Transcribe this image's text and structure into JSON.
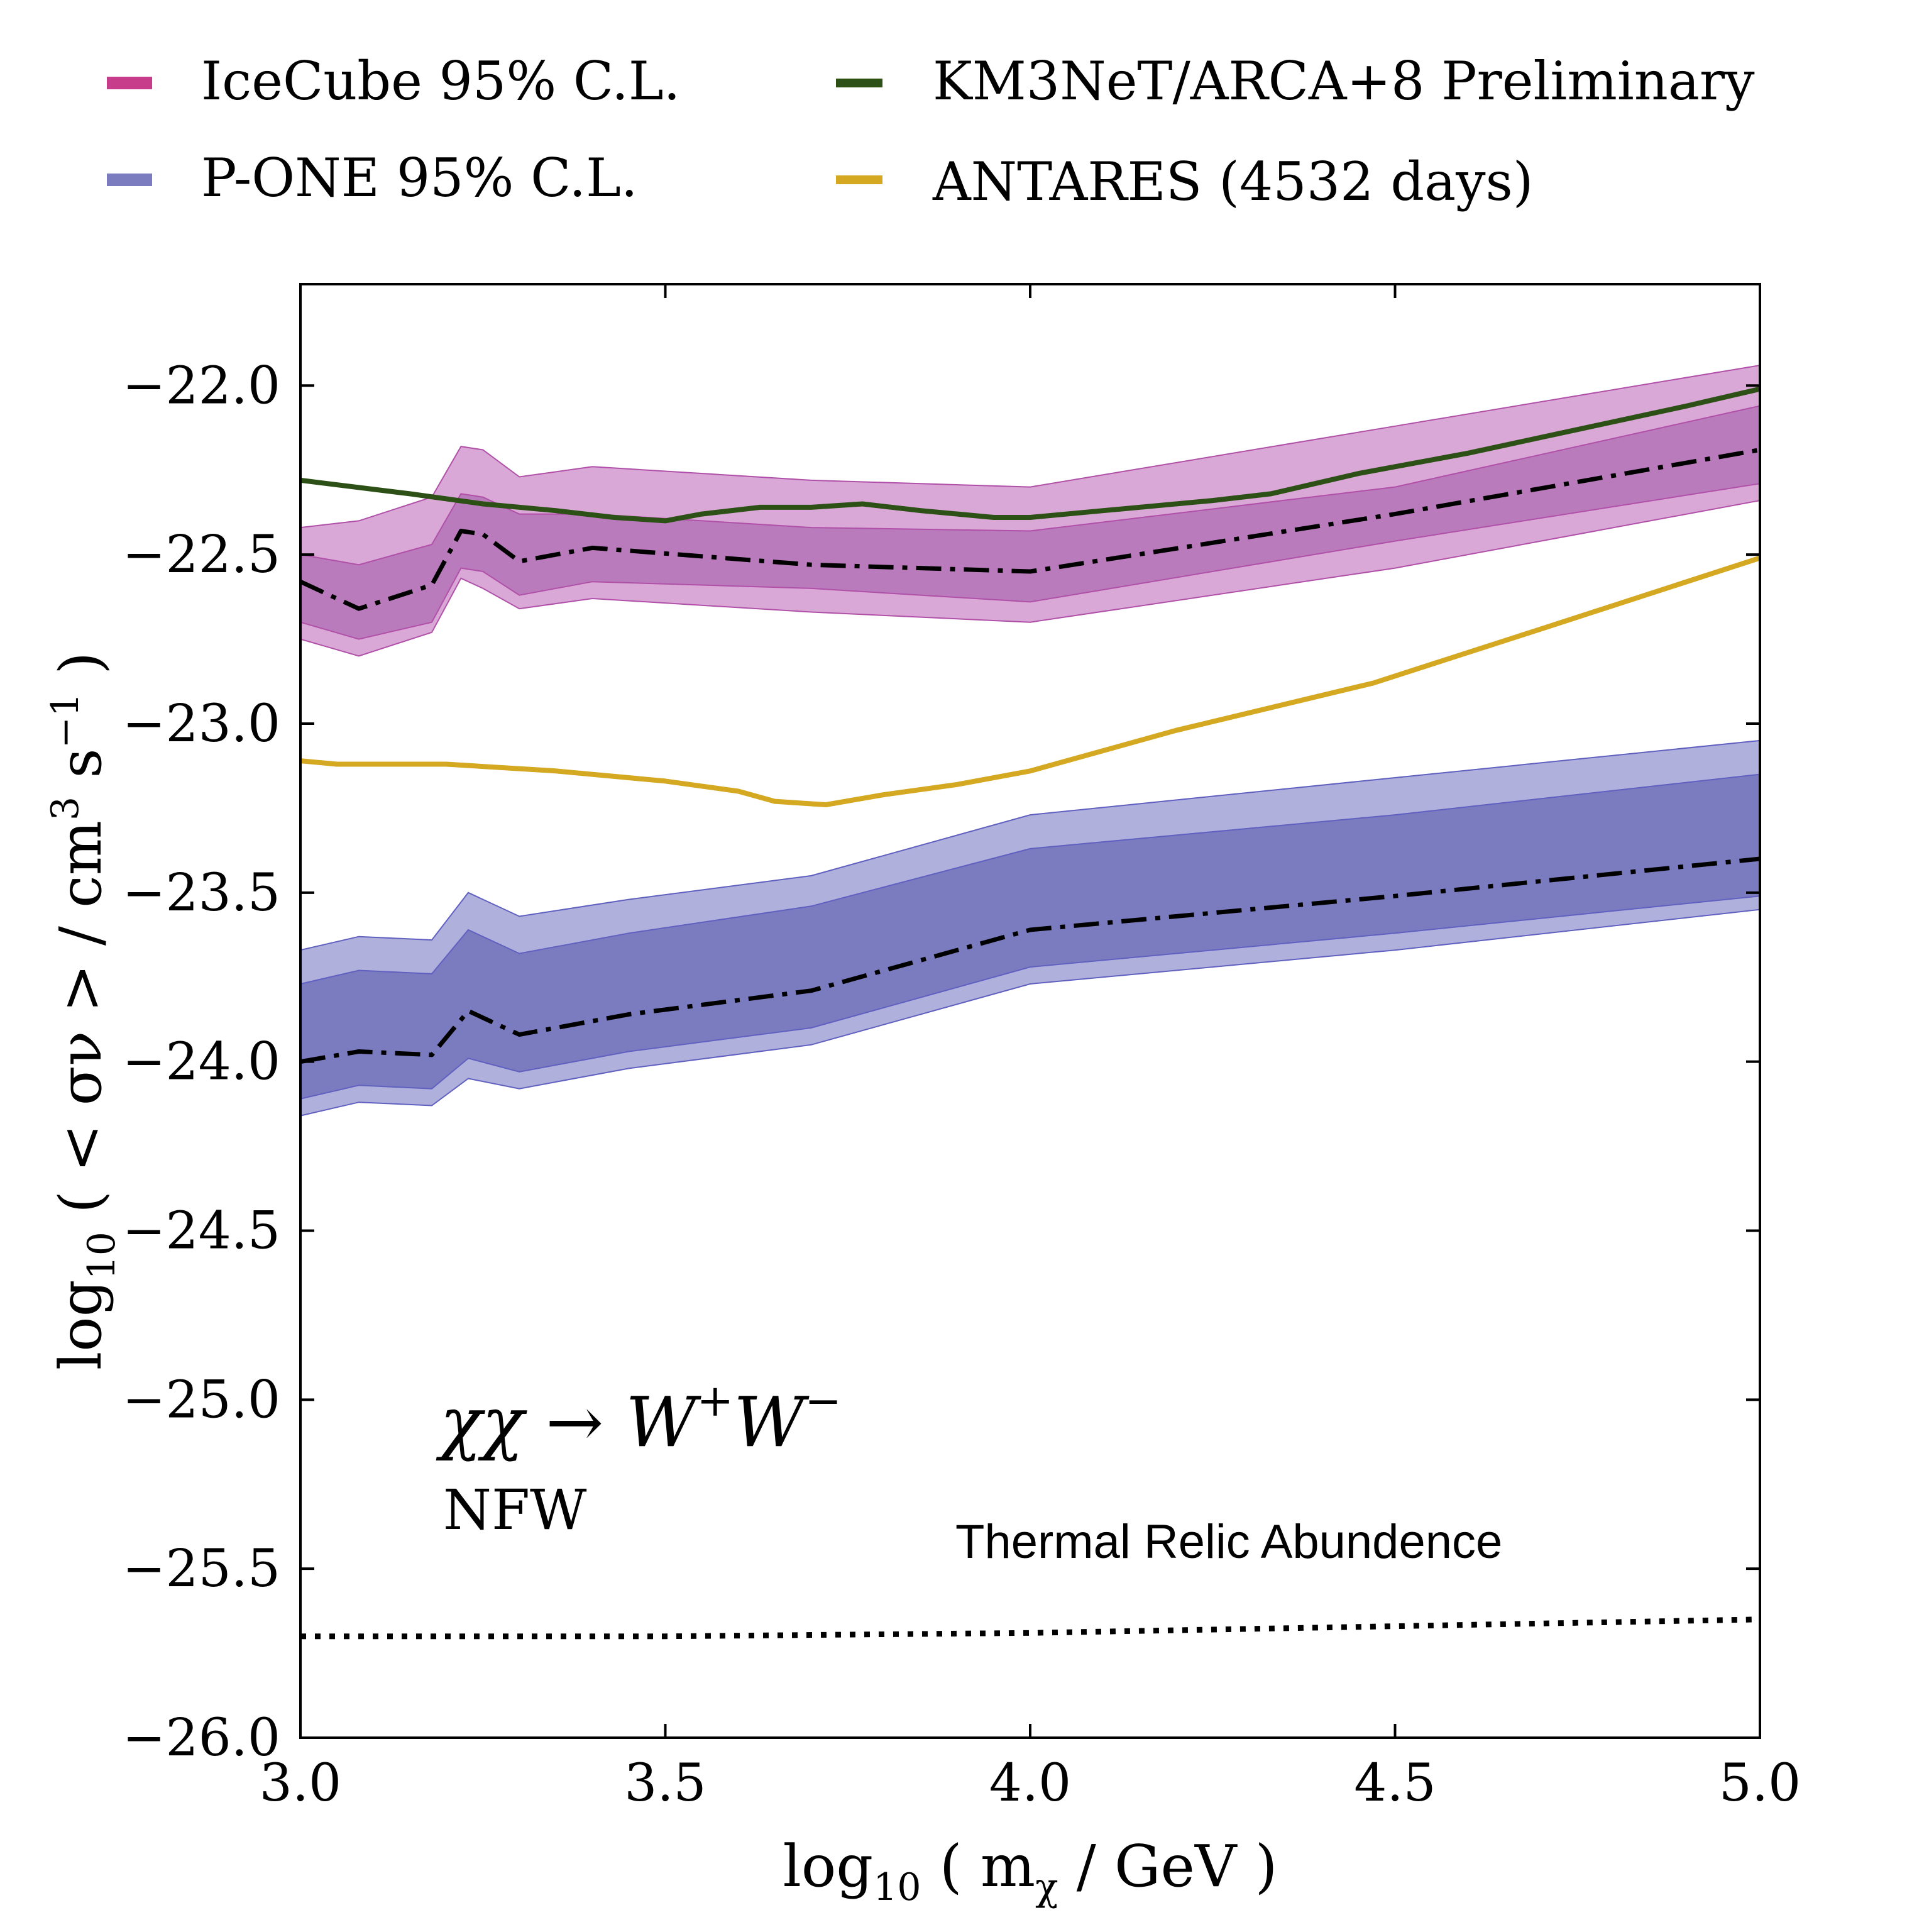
{
  "chart_data": {
    "type": "line",
    "title": "",
    "xlabel": {
      "pre": "log",
      "sub": "10",
      "post": " ( m",
      "sub2": "χ",
      "post2": " / GeV )"
    },
    "ylabel": {
      "pre": "log",
      "sub": "10",
      "post": " ( < σν > / cm",
      "sup": "3",
      "mid": " s",
      "sup2": "−1",
      "post2": " )"
    },
    "xlim": [
      3.0,
      5.0
    ],
    "ylim": [
      -26.0,
      -21.7
    ],
    "xticks": [
      3.0,
      3.5,
      4.0,
      4.5,
      5.0
    ],
    "xtick_labels": [
      "3.0",
      "3.5",
      "4.0",
      "4.5",
      "5.0"
    ],
    "yticks": [
      -26.0,
      -25.5,
      -25.0,
      -24.5,
      -24.0,
      -23.5,
      -23.0,
      -22.5,
      -22.0
    ],
    "ytick_labels": [
      "−26.0",
      "−25.5",
      "−25.0",
      "−24.5",
      "−24.0",
      "−23.5",
      "−23.0",
      "−22.5",
      "−22.0"
    ],
    "annotations": {
      "channel": {
        "chi": "χχ → W",
        "plus": "+",
        "w": "W",
        "minus": "−"
      },
      "profile": "NFW",
      "thermal_label": "Thermal Relic Abundence"
    },
    "legend": {
      "placement": "above plot",
      "entries": [
        {
          "label": "IceCube 95% C.L.",
          "color": "#c83c8c",
          "kind": "band"
        },
        {
          "label": "P-ONE 95% C.L.",
          "color": "#7b7bc0",
          "kind": "band"
        },
        {
          "label": "KM3NeT/ARCA+8 Preliminary",
          "color": "#2d5016",
          "kind": "line"
        },
        {
          "label": "ANTARES (4532 days)",
          "color": "#d4a820",
          "kind": "line"
        }
      ]
    },
    "bands": [
      {
        "name": "IceCube",
        "x": [
          3.0,
          3.08,
          3.18,
          3.22,
          3.25,
          3.3,
          3.4,
          3.7,
          4.0,
          4.5,
          5.0
        ],
        "outer_upper": [
          -22.42,
          -22.4,
          -22.33,
          -22.18,
          -22.19,
          -22.27,
          -22.24,
          -22.28,
          -22.3,
          -22.12,
          -21.94
        ],
        "inner_upper": [
          -22.5,
          -22.53,
          -22.47,
          -22.32,
          -22.33,
          -22.38,
          -22.38,
          -22.42,
          -22.43,
          -22.3,
          -22.06
        ],
        "inner_lower": [
          -22.7,
          -22.75,
          -22.7,
          -22.54,
          -22.55,
          -22.62,
          -22.58,
          -22.6,
          -22.64,
          -22.46,
          -22.29
        ],
        "outer_lower": [
          -22.75,
          -22.8,
          -22.73,
          -22.57,
          -22.6,
          -22.66,
          -22.63,
          -22.67,
          -22.7,
          -22.54,
          -22.34
        ],
        "median": [
          -22.58,
          -22.66,
          -22.59,
          -22.43,
          -22.44,
          -22.52,
          -22.48,
          -22.53,
          -22.55,
          -22.38,
          -22.19
        ],
        "outer_color": "#d9a8d6",
        "inner_color": "#b97bbb",
        "edge_color": "#b050a8"
      },
      {
        "name": "P-ONE",
        "x": [
          3.0,
          3.08,
          3.18,
          3.23,
          3.3,
          3.45,
          3.7,
          4.0,
          4.5,
          5.0
        ],
        "outer_upper": [
          -23.67,
          -23.63,
          -23.64,
          -23.5,
          -23.57,
          -23.52,
          -23.45,
          -23.27,
          -23.16,
          -23.05
        ],
        "inner_upper": [
          -23.77,
          -23.73,
          -23.74,
          -23.61,
          -23.68,
          -23.62,
          -23.54,
          -23.37,
          -23.27,
          -23.15
        ],
        "inner_lower": [
          -24.11,
          -24.07,
          -24.08,
          -23.99,
          -24.03,
          -23.97,
          -23.9,
          -23.72,
          -23.62,
          -23.51
        ],
        "outer_lower": [
          -24.16,
          -24.12,
          -24.13,
          -24.05,
          -24.08,
          -24.02,
          -23.95,
          -23.77,
          -23.67,
          -23.55
        ],
        "median": [
          -24.0,
          -23.97,
          -23.98,
          -23.85,
          -23.92,
          -23.86,
          -23.79,
          -23.61,
          -23.51,
          -23.4
        ],
        "outer_color": "#b0b0dc",
        "inner_color": "#7b7bc0",
        "edge_color": "#6060c0"
      }
    ],
    "series": [
      {
        "name": "KM3NeT/ARCA+8 Preliminary",
        "color": "#2d5016",
        "x": [
          3.0,
          3.15,
          3.25,
          3.35,
          3.43,
          3.5,
          3.55,
          3.63,
          3.7,
          3.77,
          3.85,
          3.95,
          4.0,
          4.1,
          4.25,
          4.33,
          4.45,
          4.6,
          4.75,
          4.9,
          5.0
        ],
        "y": [
          -22.28,
          -22.32,
          -22.35,
          -22.37,
          -22.39,
          -22.4,
          -22.38,
          -22.36,
          -22.36,
          -22.35,
          -22.37,
          -22.39,
          -22.39,
          -22.37,
          -22.34,
          -22.32,
          -22.26,
          -22.2,
          -22.13,
          -22.06,
          -22.01
        ]
      },
      {
        "name": "ANTARES (4532 days)",
        "color": "#d4a820",
        "x": [
          3.0,
          3.05,
          3.2,
          3.35,
          3.5,
          3.6,
          3.65,
          3.72,
          3.8,
          3.9,
          4.0,
          4.2,
          4.47,
          4.7,
          5.0
        ],
        "y": [
          -23.11,
          -23.12,
          -23.12,
          -23.14,
          -23.17,
          -23.2,
          -23.23,
          -23.24,
          -23.21,
          -23.18,
          -23.14,
          -23.02,
          -22.88,
          -22.72,
          -22.51
        ]
      },
      {
        "name": "Thermal Relic Abundence",
        "color": "#000000",
        "style": "dotted",
        "x": [
          3.0,
          3.5,
          4.0,
          4.5,
          5.0
        ],
        "y": [
          -25.7,
          -25.7,
          -25.69,
          -25.67,
          -25.65
        ]
      }
    ]
  }
}
